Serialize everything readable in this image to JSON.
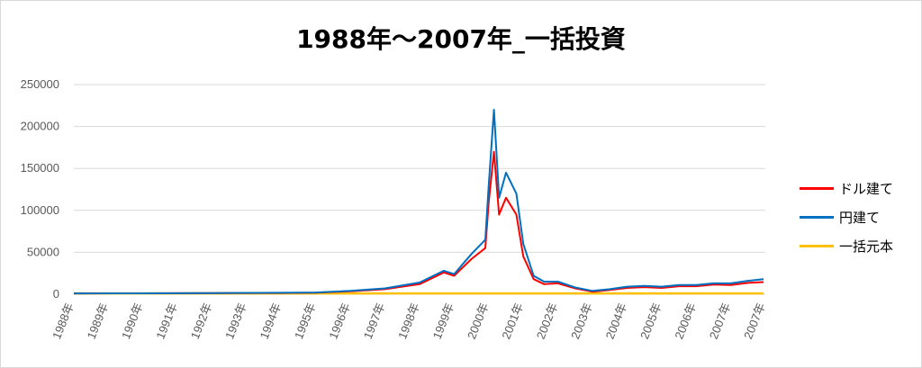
{
  "chart_data": {
    "type": "line",
    "title": "1988年～2007年_一括投資",
    "xlabel": "",
    "ylabel": "",
    "ylim": [
      0,
      250000
    ],
    "yticks": [
      "0",
      "50000",
      "100000",
      "150000",
      "200000",
      "250000"
    ],
    "xticks": [
      "1988年",
      "1989年",
      "1990年",
      "1991年",
      "1992年",
      "1993年",
      "1994年",
      "1995年",
      "1996年",
      "1997年",
      "1998年",
      "1999年",
      "2000年",
      "2001年",
      "2002年",
      "2003年",
      "2004年",
      "2005年",
      "2006年",
      "2007年",
      "2007年"
    ],
    "grid": true,
    "legend_position": "right",
    "x": [
      1988.0,
      1990.0,
      1992.0,
      1994.0,
      1995.0,
      1996.0,
      1997.0,
      1998.0,
      1998.7,
      1999.0,
      1999.5,
      1999.9,
      2000.0,
      2000.15,
      2000.3,
      2000.5,
      2000.8,
      2001.0,
      2001.3,
      2001.6,
      2002.0,
      2002.5,
      2003.0,
      2003.5,
      2004.0,
      2004.5,
      2005.0,
      2005.5,
      2006.0,
      2006.5,
      2007.0,
      2007.5,
      2007.95
    ],
    "series": [
      {
        "name": "ドル建て",
        "color": "#ff0000",
        "values": [
          1000,
          1100,
          1300,
          1500,
          1800,
          3500,
          6000,
          12000,
          26000,
          22000,
          42000,
          55000,
          110000,
          170000,
          95000,
          115000,
          95000,
          45000,
          18000,
          12000,
          13000,
          7000,
          3000,
          5000,
          7500,
          8500,
          7500,
          9500,
          9500,
          11500,
          11000,
          13500,
          14500
        ]
      },
      {
        "name": "円建て",
        "color": "#0070c0",
        "values": [
          1000,
          1100,
          1400,
          1700,
          2000,
          4000,
          7000,
          14000,
          28000,
          24000,
          48000,
          65000,
          130000,
          220000,
          115000,
          145000,
          120000,
          60000,
          22000,
          15000,
          15000,
          8000,
          4000,
          6000,
          9000,
          10000,
          9000,
          11000,
          11000,
          13000,
          13000,
          16000,
          18000
        ]
      },
      {
        "name": "一括元本",
        "color": "#ffc000",
        "values": [
          1000,
          1000,
          1000,
          1000,
          1000,
          1000,
          1000,
          1000,
          1000,
          1000,
          1000,
          1000,
          1000,
          1000,
          1000,
          1000,
          1000,
          1000,
          1000,
          1000,
          1000,
          1000,
          1000,
          1000,
          1000,
          1000,
          1000,
          1000,
          1000,
          1000,
          1000,
          1000,
          1000
        ]
      }
    ]
  }
}
